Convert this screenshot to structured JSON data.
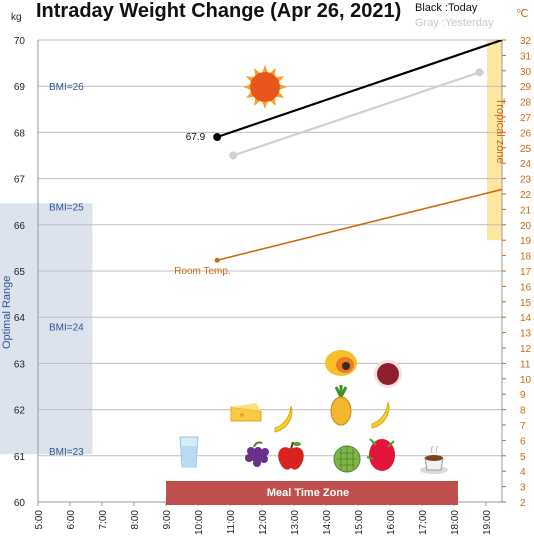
{
  "title": "Intraday Weight Change (Apr 26, 2021)",
  "legend": {
    "today": "Black :Today",
    "yesterday": "Gray :Yesterday"
  },
  "units": {
    "left": "kg",
    "right": "℃"
  },
  "colors": {
    "today": "#000000",
    "yesterday": "#d0d0d0",
    "room_temp": "#cc6a0e",
    "optimal_band": "#dce3ec",
    "tropical_band": "#fde7a0",
    "meal_zone": "#c0504d",
    "grid": "#bfbfbf"
  },
  "chart_data": {
    "type": "line",
    "title": "Intraday Weight Change (Apr 26, 2021)",
    "x_ticks": [
      "5:00",
      "6:00",
      "7:00",
      "8:00",
      "9:00",
      "10:00",
      "11:00",
      "12:00",
      "13:00",
      "14:00",
      "15:00",
      "16:00",
      "17:00",
      "18:00",
      "19:00"
    ],
    "xlim": [
      5,
      19.5
    ],
    "ylim_left": [
      60,
      70
    ],
    "ylim_right": [
      2,
      32
    ],
    "grid": true,
    "series": [
      {
        "key": "today",
        "axis": "left",
        "x": [
          10.6,
          19.5
        ],
        "y": [
          67.9,
          70.0
        ],
        "start_label": "67.9"
      },
      {
        "key": "yesterday",
        "axis": "left",
        "x": [
          11.1,
          18.8
        ],
        "y": [
          67.5,
          69.3
        ]
      },
      {
        "key": "room_temp",
        "name": "Room Temp.",
        "axis": "right",
        "x": [
          10.6,
          19.5
        ],
        "y": [
          17.7,
          22.3
        ]
      }
    ],
    "bmi_lines": [
      {
        "label": "BMI=26",
        "kg": 69.0
      },
      {
        "label": "BMI=25",
        "kg": 66.4
      },
      {
        "label": "BMI=24",
        "kg": 63.8
      },
      {
        "label": "BMI=23",
        "kg": 61.1
      }
    ],
    "optimal_range": {
      "label": "Optimal Range",
      "kg": [
        61.1,
        66.4
      ],
      "x": [
        5,
        6.7
      ]
    },
    "tropical_zone": {
      "label": "Tropical zone",
      "celsius": [
        19,
        32
      ]
    },
    "meal_time_zone": {
      "label": "Meal Time Zone",
      "x": [
        9,
        18
      ]
    },
    "icons": [
      "sun-icon",
      "glass-of-water-icon",
      "grapes-icon",
      "apple-icon",
      "cheese-icon",
      "banana-icon",
      "papaya-icon",
      "pineapple-icon",
      "banana-icon",
      "custard-apple-icon",
      "dragon-fruit-icon",
      "pomegranate-icon",
      "hot-drink-icon"
    ]
  }
}
